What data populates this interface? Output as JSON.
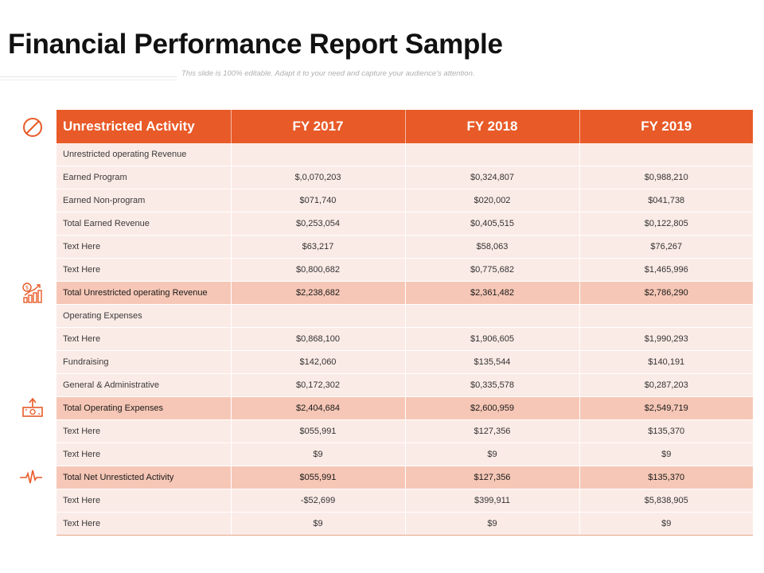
{
  "page": {
    "title": "Financial Performance Report Sample",
    "subtitle": "This slide is 100% editable. Adapt it to your need and capture your audience's attention."
  },
  "colors": {
    "accent": "#e85a28",
    "row_light": "#fbebe6",
    "row_total": "#f6c7b6"
  },
  "icons": [
    "no-entry-icon",
    "revenue-growth-icon",
    "money-upload-icon",
    "heartbeat-icon"
  ],
  "table": {
    "headers": [
      "Unrestricted Activity",
      "FY 2017",
      "FY 2018",
      "FY 2019"
    ],
    "rows": [
      {
        "label": "Unrestricted operating Revenue",
        "fy2017": "",
        "fy2018": "",
        "fy2019": ""
      },
      {
        "label": "Earned Program",
        "fy2017": "$,0,070,203",
        "fy2018": "$0,324,807",
        "fy2019": "$0,988,210"
      },
      {
        "label": "Earned Non-program",
        "fy2017": "$071,740",
        "fy2018": "$020,002",
        "fy2019": "$041,738"
      },
      {
        "label": "Total Earned Revenue",
        "fy2017": "$0,253,054",
        "fy2018": "$0,405,515",
        "fy2019": "$0,122,805"
      },
      {
        "label": "Text Here",
        "fy2017": "$63,217",
        "fy2018": "$58,063",
        "fy2019": "$76,267"
      },
      {
        "label": "Text Here",
        "fy2017": "$0,800,682",
        "fy2018": "$0,775,682",
        "fy2019": "$1,465,996"
      },
      {
        "label": "Total Unrestricted operating Revenue",
        "fy2017": "$2,238,682",
        "fy2018": "$2,361,482",
        "fy2019": "$2,786,290"
      },
      {
        "label": "Operating Expenses",
        "fy2017": "",
        "fy2018": "",
        "fy2019": ""
      },
      {
        "label": "Text Here",
        "fy2017": "$0,868,100",
        "fy2018": "$1,906,605",
        "fy2019": "$1,990,293"
      },
      {
        "label": "Fundraising",
        "fy2017": "$142,060",
        "fy2018": "$135,544",
        "fy2019": "$140,191"
      },
      {
        "label": "General & Administrative",
        "fy2017": "$0,172,302",
        "fy2018": "$0,335,578",
        "fy2019": "$0,287,203"
      },
      {
        "label": "Total Operating Expenses",
        "fy2017": "$2,404,684",
        "fy2018": "$2,600,959",
        "fy2019": "$2,549,719"
      },
      {
        "label": "Text Here",
        "fy2017": "$055,991",
        "fy2018": "$127,356",
        "fy2019": "$135,370"
      },
      {
        "label": "Text Here",
        "fy2017": "$9",
        "fy2018": "$9",
        "fy2019": "$9"
      },
      {
        "label": "Total Net Unresticted Activity",
        "fy2017": "$055,991",
        "fy2018": "$127,356",
        "fy2019": "$135,370"
      },
      {
        "label": "Text Here",
        "fy2017": "-$52,699",
        "fy2018": "$399,911",
        "fy2019": "$5,838,905"
      },
      {
        "label": "Text Here",
        "fy2017": "$9",
        "fy2018": "$9",
        "fy2019": "$9"
      }
    ]
  }
}
